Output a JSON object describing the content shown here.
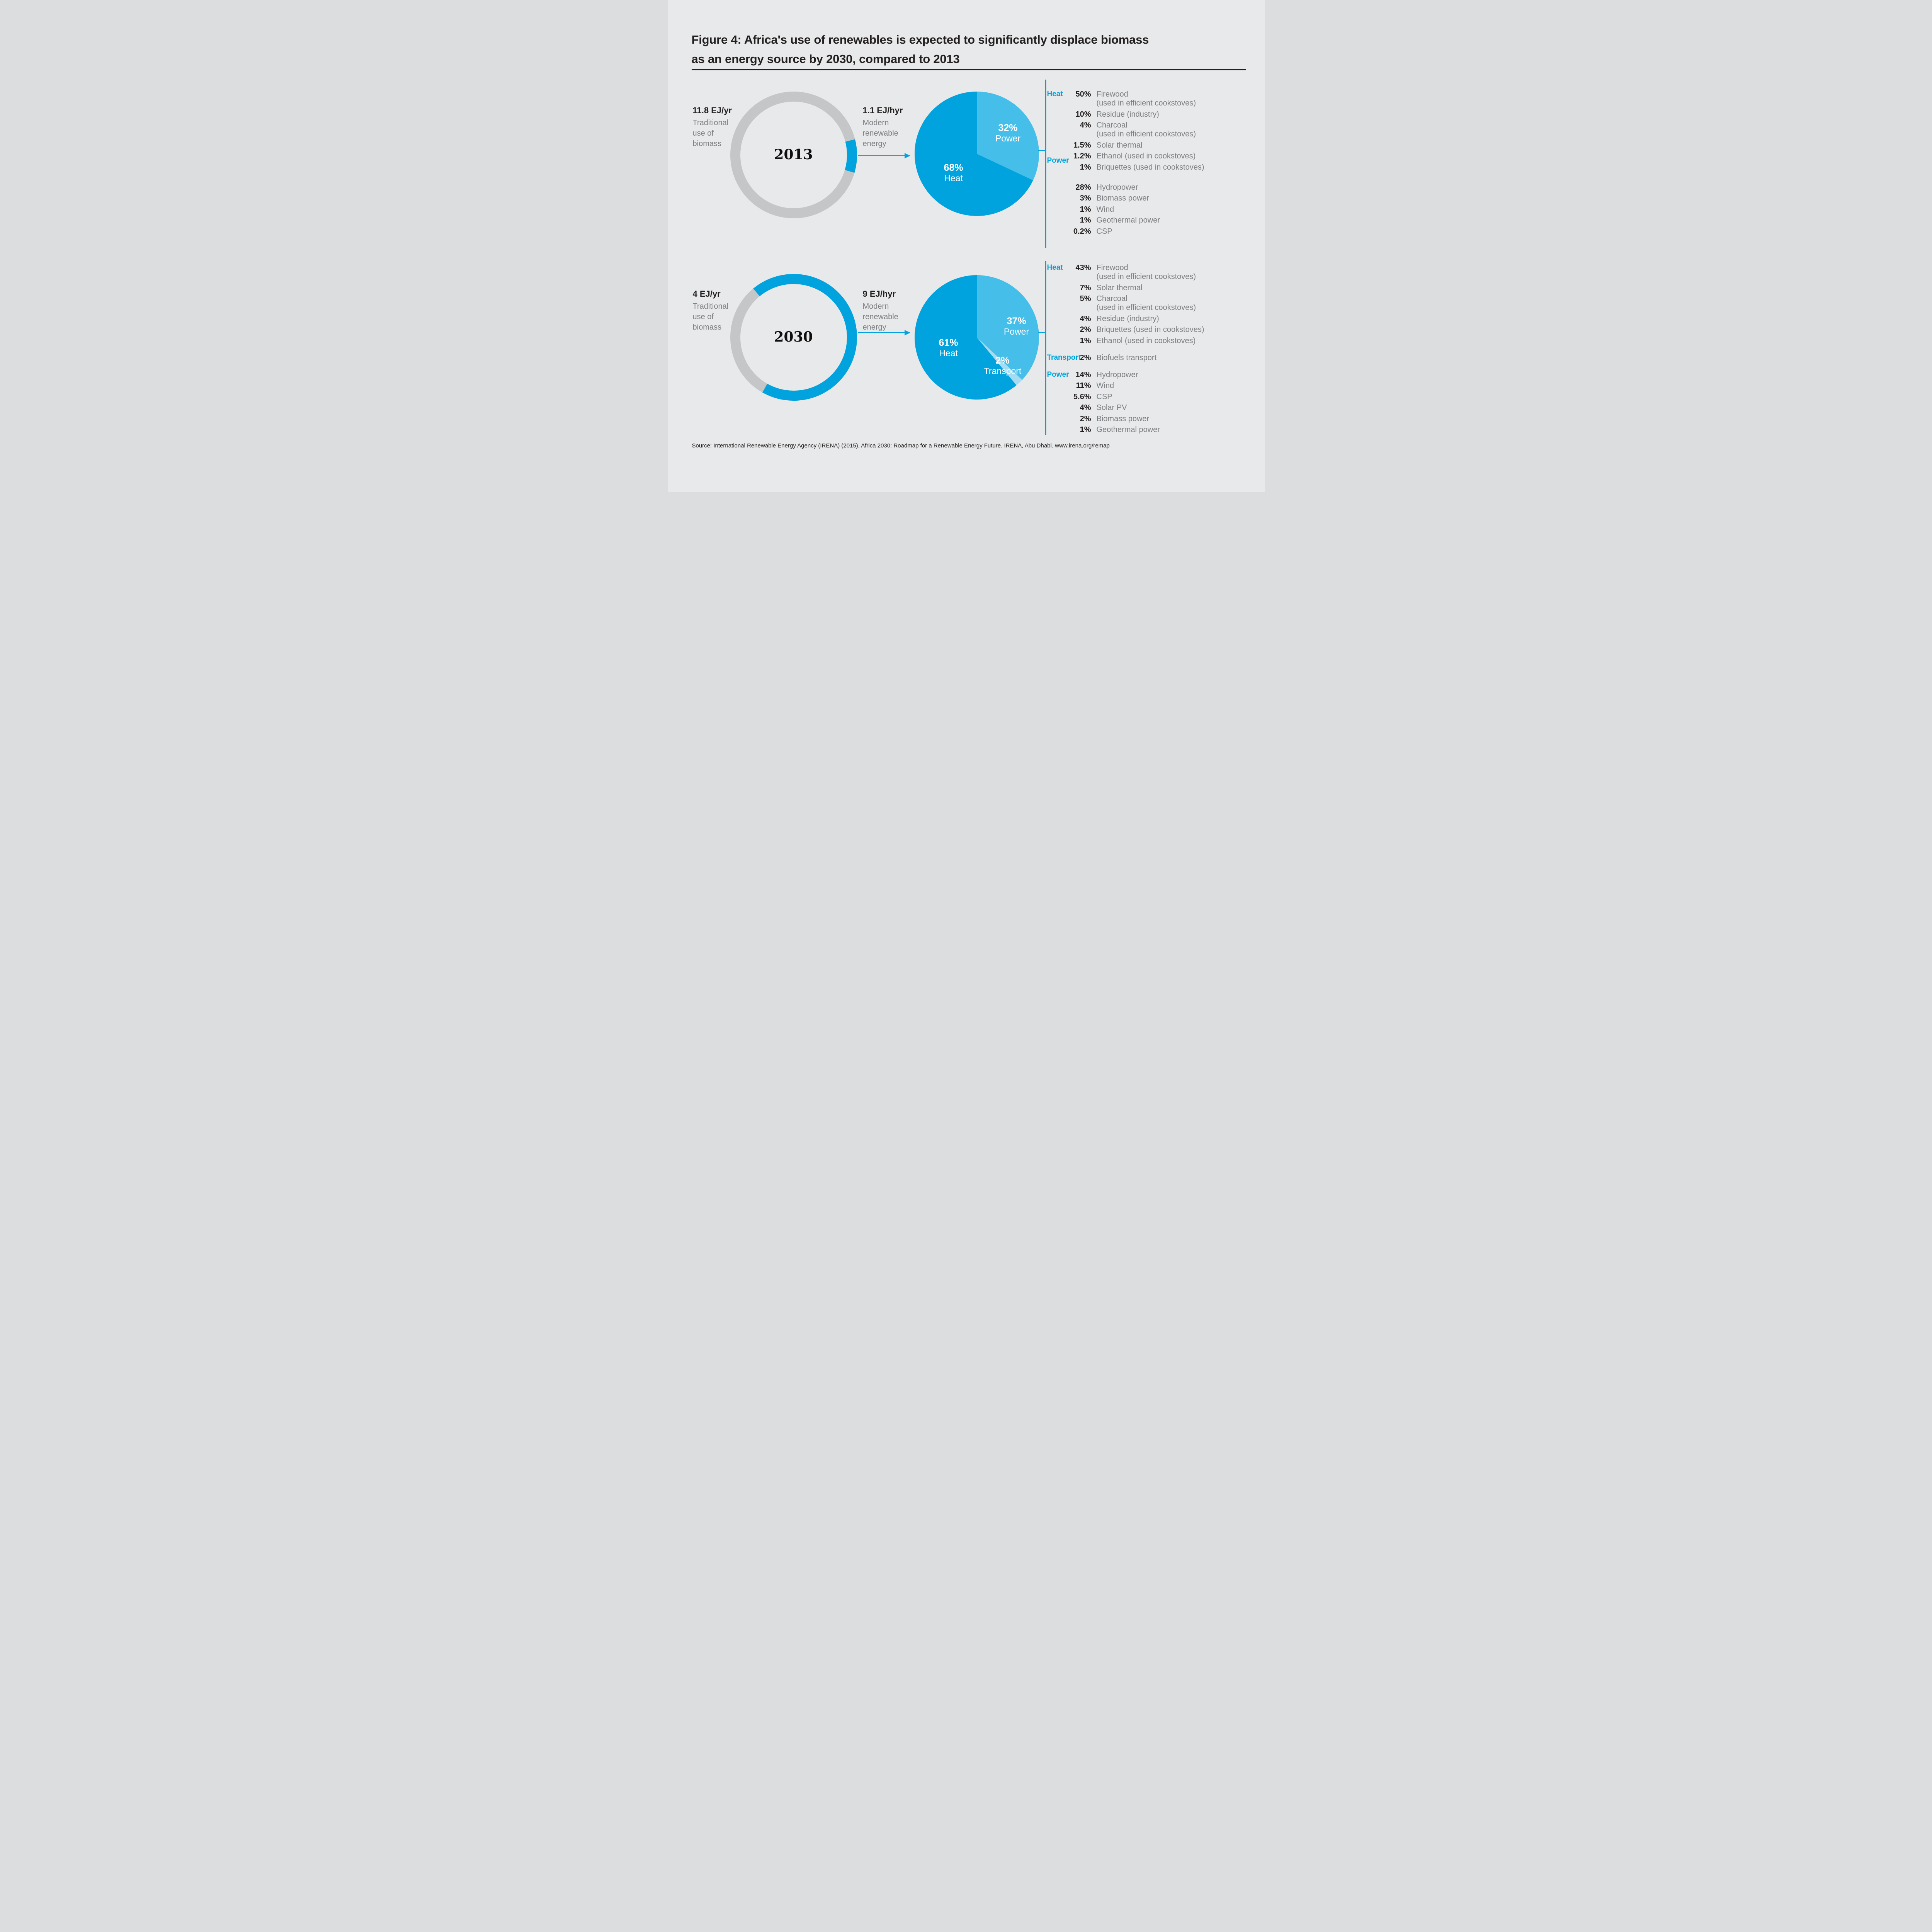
{
  "title": {
    "line1": "Figure 4: Africa's use of renewables is expected to significantly displace biomass",
    "line2": "as an energy source by 2030, compared to 2013"
  },
  "source": "Source: International Renewable Energy Agency (IRENA) (2015), Africa 2030: Roadmap for a Renewable Energy Future. IRENA, Abu Dhabi. www.irena.org/remap",
  "colors": {
    "background": "#E8E9EA",
    "dark_blue": "#00A3DE",
    "light_blue": "#45BFE9",
    "pale_blue": "#A6DCF2",
    "ring_gray": "#C5C6C7",
    "text_dark": "#231F20",
    "text_gray": "#7D7F82"
  },
  "chart_data": [
    {
      "type": "pie",
      "year": "2013",
      "donut": {
        "traditional_value": "11.8 EJ/yr",
        "traditional_label": "Traditional\nuse of\nbiomass",
        "traditional_ej": 11.8,
        "modern_value": "1.1 EJ/hyr",
        "modern_label": "Modern\nrenewable\nenergy",
        "modern_ej": 1.1
      },
      "slices": [
        {
          "label": "Power",
          "value": 32,
          "color": "light_blue"
        },
        {
          "label": "Heat",
          "value": 68,
          "color": "dark_blue"
        }
      ],
      "legend": [
        {
          "group": "Heat",
          "items": [
            {
              "value": 50,
              "label": "Firewood",
              "note": "(used in efficient cookstoves)"
            },
            {
              "value": 10,
              "label": "Residue (industry)"
            },
            {
              "value": 4,
              "label": "Charcoal",
              "note": "(used in efficient cookstoves)"
            },
            {
              "value": 1.5,
              "label": "Solar thermal"
            },
            {
              "value": 1.2,
              "label": "Ethanol (used in cookstoves)"
            },
            {
              "value": 1,
              "label": "Briquettes (used in cookstoves)"
            }
          ]
        },
        {
          "group": "Power",
          "items": [
            {
              "value": 28,
              "label": "Hydropower"
            },
            {
              "value": 3,
              "label": "Biomass power"
            },
            {
              "value": 1,
              "label": "Wind"
            },
            {
              "value": 1,
              "label": "Geothermal power"
            },
            {
              "value": 0.2,
              "label": "CSP"
            }
          ]
        }
      ]
    },
    {
      "type": "pie",
      "year": "2030",
      "donut": {
        "traditional_value": "4 EJ/yr",
        "traditional_label": "Traditional\nuse of\nbiomass",
        "traditional_ej": 4,
        "modern_value": "9 EJ/hyr",
        "modern_label": "Modern\nrenewable\nenergy",
        "modern_ej": 9
      },
      "slices": [
        {
          "label": "Power",
          "value": 37,
          "color": "light_blue"
        },
        {
          "label": "Transport",
          "value": 2,
          "color": "pale_blue"
        },
        {
          "label": "Heat",
          "value": 61,
          "color": "dark_blue"
        }
      ],
      "legend": [
        {
          "group": "Heat",
          "items": [
            {
              "value": 43,
              "label": "Firewood",
              "note": "(used in efficient cookstoves)"
            },
            {
              "value": 7,
              "label": "Solar thermal"
            },
            {
              "value": 5,
              "label": "Charcoal",
              "note": "(used in efficient cookstoves)"
            },
            {
              "value": 4,
              "label": "Residue (industry)"
            },
            {
              "value": 2,
              "label": "Briquettes (used in cookstoves)"
            },
            {
              "value": 1,
              "label": "Ethanol (used in cookstoves)"
            }
          ]
        },
        {
          "group": "Transport",
          "items": [
            {
              "value": 2,
              "label": "Biofuels transport"
            }
          ]
        },
        {
          "group": "Power",
          "items": [
            {
              "value": 14,
              "label": "Hydropower"
            },
            {
              "value": 11,
              "label": "Wind"
            },
            {
              "value": 5.6,
              "label": "CSP"
            },
            {
              "value": 4,
              "label": "Solar PV"
            },
            {
              "value": 2,
              "label": "Biomass power"
            },
            {
              "value": 1,
              "label": "Geothermal power"
            }
          ]
        }
      ]
    }
  ]
}
